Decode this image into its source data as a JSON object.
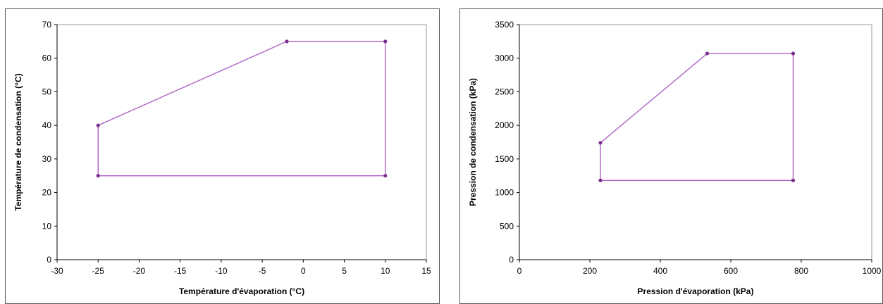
{
  "chart_data": [
    {
      "type": "line",
      "title": "",
      "xlabel": "Température d'évaporation (°C)",
      "ylabel": "Température de condensation (°C)",
      "xlim": [
        -30,
        15
      ],
      "ylim": [
        0,
        70
      ],
      "xticks": [
        -30,
        -25,
        -20,
        -15,
        -10,
        -5,
        0,
        5,
        10,
        15
      ],
      "yticks": [
        0,
        10,
        20,
        30,
        40,
        50,
        60,
        70
      ],
      "grid": false,
      "legend": "none",
      "color": "#b06cc8",
      "marker_color": "#7a2f8f",
      "series": [
        {
          "x": [
            -25,
            -2,
            10,
            10,
            -25,
            -25
          ],
          "y": [
            40,
            65,
            65,
            25,
            25,
            40
          ]
        }
      ]
    },
    {
      "type": "line",
      "title": "",
      "xlabel": "Pression d'évaporation (kPa)",
      "ylabel": "Pression de condensation (kPa)",
      "xlim": [
        0,
        1000
      ],
      "ylim": [
        0,
        3500
      ],
      "xticks": [
        0,
        200,
        400,
        600,
        800,
        1000
      ],
      "yticks": [
        0,
        500,
        1000,
        1500,
        2000,
        2500,
        3000,
        3500
      ],
      "grid": false,
      "legend": "none",
      "color": "#b06cc8",
      "marker_color": "#7a2f8f",
      "series": [
        {
          "x": [
            230,
            533,
            777,
            777,
            230,
            230
          ],
          "y": [
            1740,
            3070,
            3070,
            1180,
            1180,
            1740
          ]
        }
      ]
    }
  ]
}
